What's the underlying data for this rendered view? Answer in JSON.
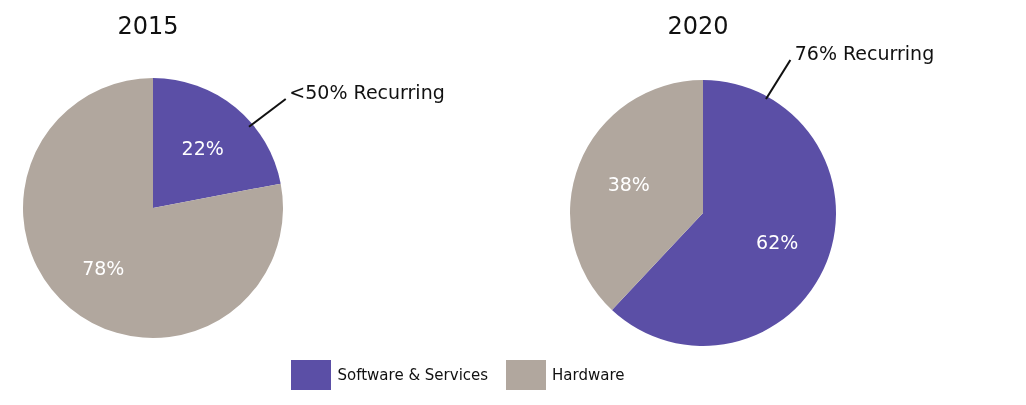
{
  "chart_data": [
    {
      "type": "pie",
      "title": "2015",
      "categories": [
        "Software & Services",
        "Hardware"
      ],
      "values": [
        22,
        78
      ],
      "colors": [
        "#5b4fa6",
        "#b1a79e"
      ],
      "value_labels": [
        "22%",
        "78%"
      ],
      "annotations": [
        "<50% Recurring"
      ],
      "legend": "bottom"
    },
    {
      "type": "pie",
      "title": "2020",
      "values": [
        62,
        38
      ],
      "colors": [
        "#5b4fa6",
        "#b1a79e"
      ],
      "value_labels": [
        "62%",
        "38%"
      ],
      "annotations": [
        "76% Recurring"
      ]
    }
  ]
}
